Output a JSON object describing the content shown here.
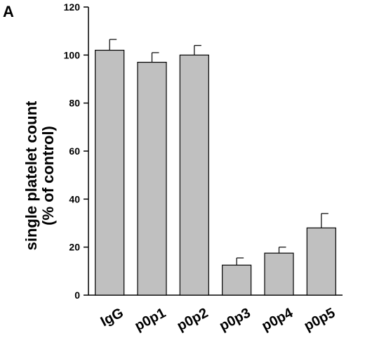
{
  "panel_label": "A",
  "chart_data": {
    "type": "bar",
    "categories": [
      "IgG",
      "p0p1",
      "p0p2",
      "p0p3",
      "p0p4",
      "p0p5"
    ],
    "values": [
      102,
      97,
      100,
      12.5,
      17.5,
      28
    ],
    "errors": [
      4.5,
      4,
      4,
      3,
      2.5,
      6
    ],
    "ylabel_line1": "single platelet count",
    "ylabel_line2": "(% of control)",
    "ylim": [
      0,
      120
    ],
    "yticks": [
      0,
      20,
      40,
      60,
      80,
      100,
      120
    ],
    "bar_color": "#c0c0c0",
    "grid": false
  }
}
